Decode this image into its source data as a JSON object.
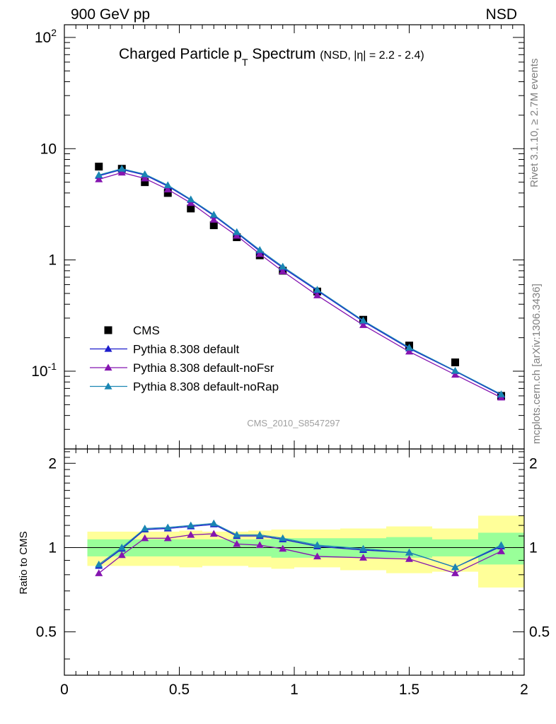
{
  "header": {
    "left": "900 GeV pp",
    "right": "NSD"
  },
  "side_labels": {
    "rivet": "Rivet 3.1.10, ≥ 2.7M events",
    "mcplots": "mcplots.cern.ch [arXiv:1306.3436]"
  },
  "watermark": "CMS_2010_S8547297",
  "chart_data": [
    {
      "panel": "main",
      "type": "line",
      "title_main": "Charged Particle p",
      "title_sub": "T",
      "title_rest": " Spectrum",
      "title_small": "(NSD, |η| = 2.2 - 2.4)",
      "xlabel": "",
      "ylabel": "",
      "xlim": [
        0,
        2
      ],
      "ylim": [
        0.02,
        130
      ],
      "yscale": "log",
      "y_tick_labels": [
        "10^2",
        "10",
        "1",
        "10^-1"
      ],
      "legend_position": "lower-left",
      "x": [
        0.15,
        0.25,
        0.35,
        0.45,
        0.55,
        0.65,
        0.75,
        0.85,
        0.95,
        1.1,
        1.3,
        1.5,
        1.7,
        1.9
      ],
      "series": [
        {
          "name": "CMS",
          "color": "#000000",
          "marker": "square",
          "line": false,
          "values": [
            6.9,
            6.6,
            5.0,
            4.0,
            2.9,
            2.05,
            1.6,
            1.1,
            0.8,
            0.52,
            0.29,
            0.17,
            0.12,
            0.06
          ]
        },
        {
          "name": "Pythia 8.308 default",
          "color": "#1c1ccc",
          "marker": "triangle",
          "line": true,
          "values": [
            5.7,
            6.5,
            5.8,
            4.6,
            3.45,
            2.5,
            1.75,
            1.2,
            0.85,
            0.53,
            0.28,
            0.16,
            0.1,
            0.061
          ]
        },
        {
          "name": "Pythia 8.308 default-noFsr",
          "color": "#8515b0",
          "marker": "triangle",
          "line": true,
          "values": [
            5.3,
            6.1,
            5.4,
            4.3,
            3.25,
            2.3,
            1.65,
            1.13,
            0.79,
            0.48,
            0.26,
            0.15,
            0.093,
            0.058
          ]
        },
        {
          "name": "Pythia 8.308 default-noRap",
          "color": "#1a86b3",
          "marker": "triangle",
          "line": true,
          "values": [
            5.8,
            6.6,
            5.9,
            4.7,
            3.5,
            2.55,
            1.78,
            1.23,
            0.87,
            0.54,
            0.285,
            0.163,
            0.101,
            0.062
          ]
        }
      ]
    },
    {
      "panel": "ratio",
      "type": "line",
      "xlabel": "",
      "ylabel": "Ratio to CMS",
      "xlim": [
        0,
        2
      ],
      "ylim": [
        0.35,
        2.25
      ],
      "x_tick_labels": [
        "0",
        "0.5",
        "1",
        "1.5",
        "2"
      ],
      "y_tick_labels": [
        "0.5",
        "1",
        "2"
      ],
      "reference_line": 1,
      "bands": {
        "bins": [
          [
            0.1,
            0.2
          ],
          [
            0.2,
            0.3
          ],
          [
            0.3,
            0.4
          ],
          [
            0.4,
            0.5
          ],
          [
            0.5,
            0.6
          ],
          [
            0.6,
            0.7
          ],
          [
            0.7,
            0.8
          ],
          [
            0.8,
            0.9
          ],
          [
            0.9,
            1.0
          ],
          [
            1.0,
            1.2
          ],
          [
            1.2,
            1.4
          ],
          [
            1.4,
            1.6
          ],
          [
            1.6,
            1.8
          ],
          [
            1.8,
            2.0
          ]
        ],
        "inner_color": "#99ff99",
        "outer_color": "#ffff99",
        "inner": [
          [
            0.93,
            1.07
          ],
          [
            0.93,
            1.07
          ],
          [
            0.93,
            1.07
          ],
          [
            0.93,
            1.07
          ],
          [
            0.93,
            1.07
          ],
          [
            0.93,
            1.07
          ],
          [
            0.93,
            1.07
          ],
          [
            0.93,
            1.07
          ],
          [
            0.92,
            1.08
          ],
          [
            0.92,
            1.08
          ],
          [
            0.92,
            1.08
          ],
          [
            0.92,
            1.09
          ],
          [
            0.93,
            1.07
          ],
          [
            0.87,
            1.13
          ]
        ],
        "outer": [
          [
            0.86,
            1.14
          ],
          [
            0.86,
            1.14
          ],
          [
            0.86,
            1.14
          ],
          [
            0.86,
            1.14
          ],
          [
            0.85,
            1.15
          ],
          [
            0.86,
            1.14
          ],
          [
            0.86,
            1.14
          ],
          [
            0.85,
            1.15
          ],
          [
            0.84,
            1.16
          ],
          [
            0.85,
            1.16
          ],
          [
            0.83,
            1.17
          ],
          [
            0.81,
            1.19
          ],
          [
            0.82,
            1.17
          ],
          [
            0.72,
            1.3
          ]
        ]
      },
      "x": [
        0.15,
        0.25,
        0.35,
        0.45,
        0.55,
        0.65,
        0.75,
        0.85,
        0.95,
        1.1,
        1.3,
        1.5,
        1.7,
        1.9
      ],
      "series": [
        {
          "name": "Pythia 8.308 default",
          "color": "#1c1ccc",
          "values": [
            0.86,
            0.99,
            1.16,
            1.17,
            1.19,
            1.21,
            1.1,
            1.1,
            1.07,
            1.01,
            0.98,
            0.96,
            0.85,
            1.01
          ]
        },
        {
          "name": "Pythia 8.308 default-noFsr",
          "color": "#8515b0",
          "values": [
            0.81,
            0.94,
            1.08,
            1.08,
            1.11,
            1.12,
            1.03,
            1.02,
            0.99,
            0.93,
            0.92,
            0.91,
            0.81,
            0.97
          ]
        },
        {
          "name": "Pythia 8.308 default-noRap",
          "color": "#1a86b3",
          "values": [
            0.87,
            1.0,
            1.17,
            1.18,
            1.2,
            1.22,
            1.11,
            1.11,
            1.08,
            1.02,
            0.99,
            0.96,
            0.85,
            1.02
          ]
        }
      ]
    }
  ]
}
